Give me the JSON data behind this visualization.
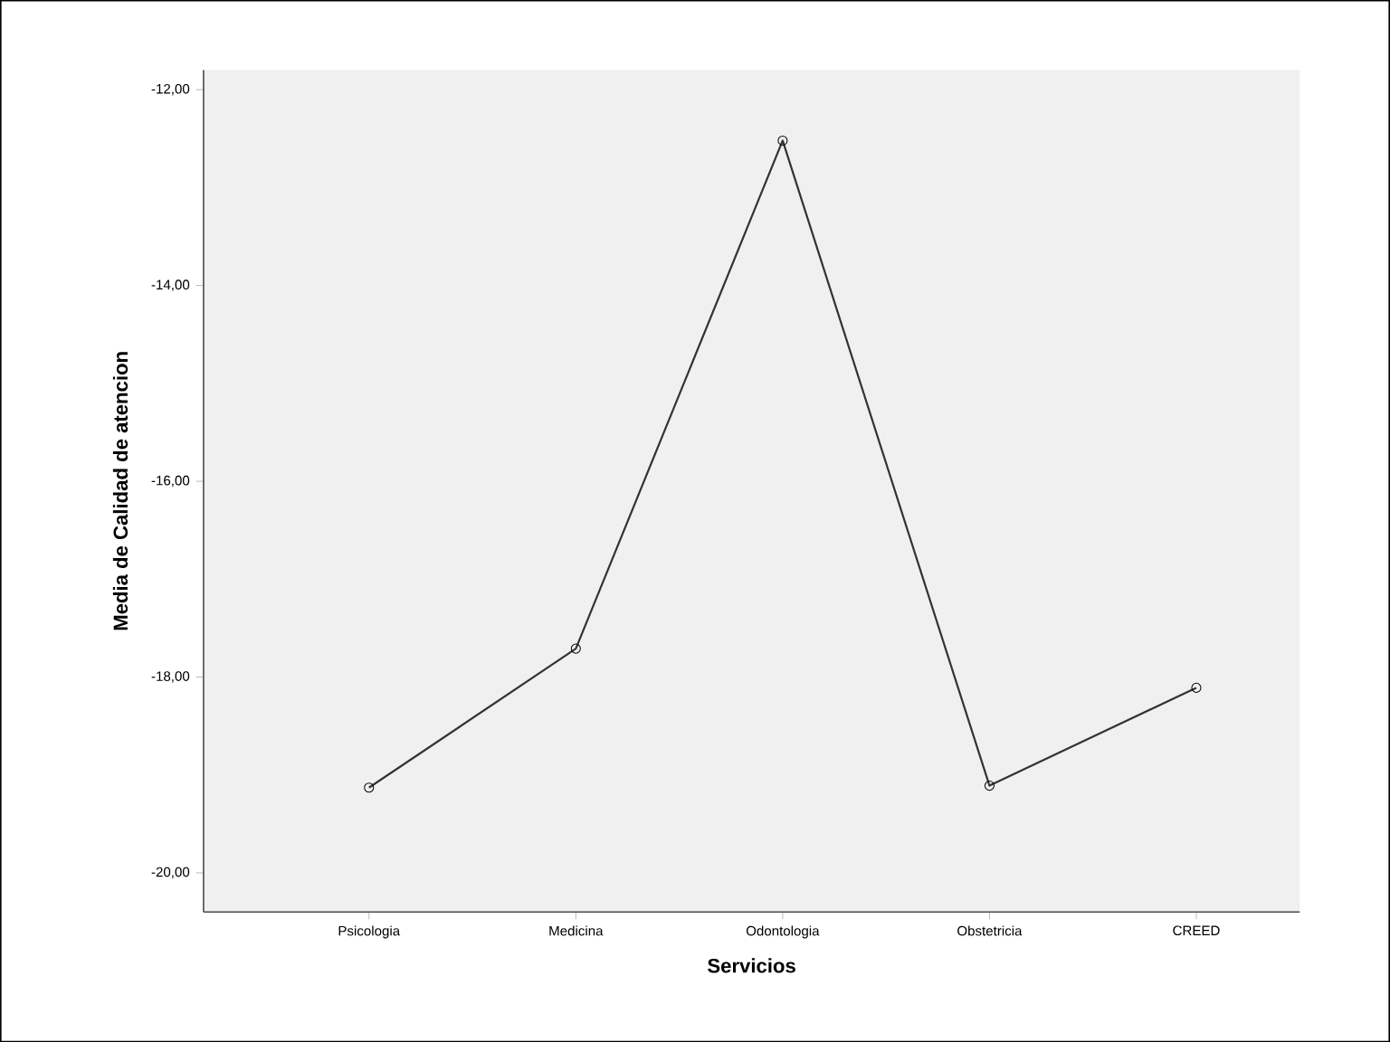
{
  "chart_data": {
    "type": "line",
    "xlabel": "Servicios",
    "ylabel": "Media de Calidad de atencion",
    "categories": [
      "Psicologia",
      "Medicina",
      "Odontologia",
      "Obstetricia",
      "CREED"
    ],
    "values": [
      -19.13,
      -17.71,
      -12.52,
      -19.11,
      -18.11
    ],
    "color": "#333333",
    "marker": "circle",
    "grid": false,
    "ylim": [
      -20.4,
      -11.8
    ],
    "yticks": [
      {
        "value": -20,
        "label": "-20,00"
      },
      {
        "value": -18,
        "label": "-18,00"
      },
      {
        "value": -16,
        "label": "-16,00"
      },
      {
        "value": -14,
        "label": "-14,00"
      },
      {
        "value": -12,
        "label": "-12,00"
      }
    ]
  }
}
